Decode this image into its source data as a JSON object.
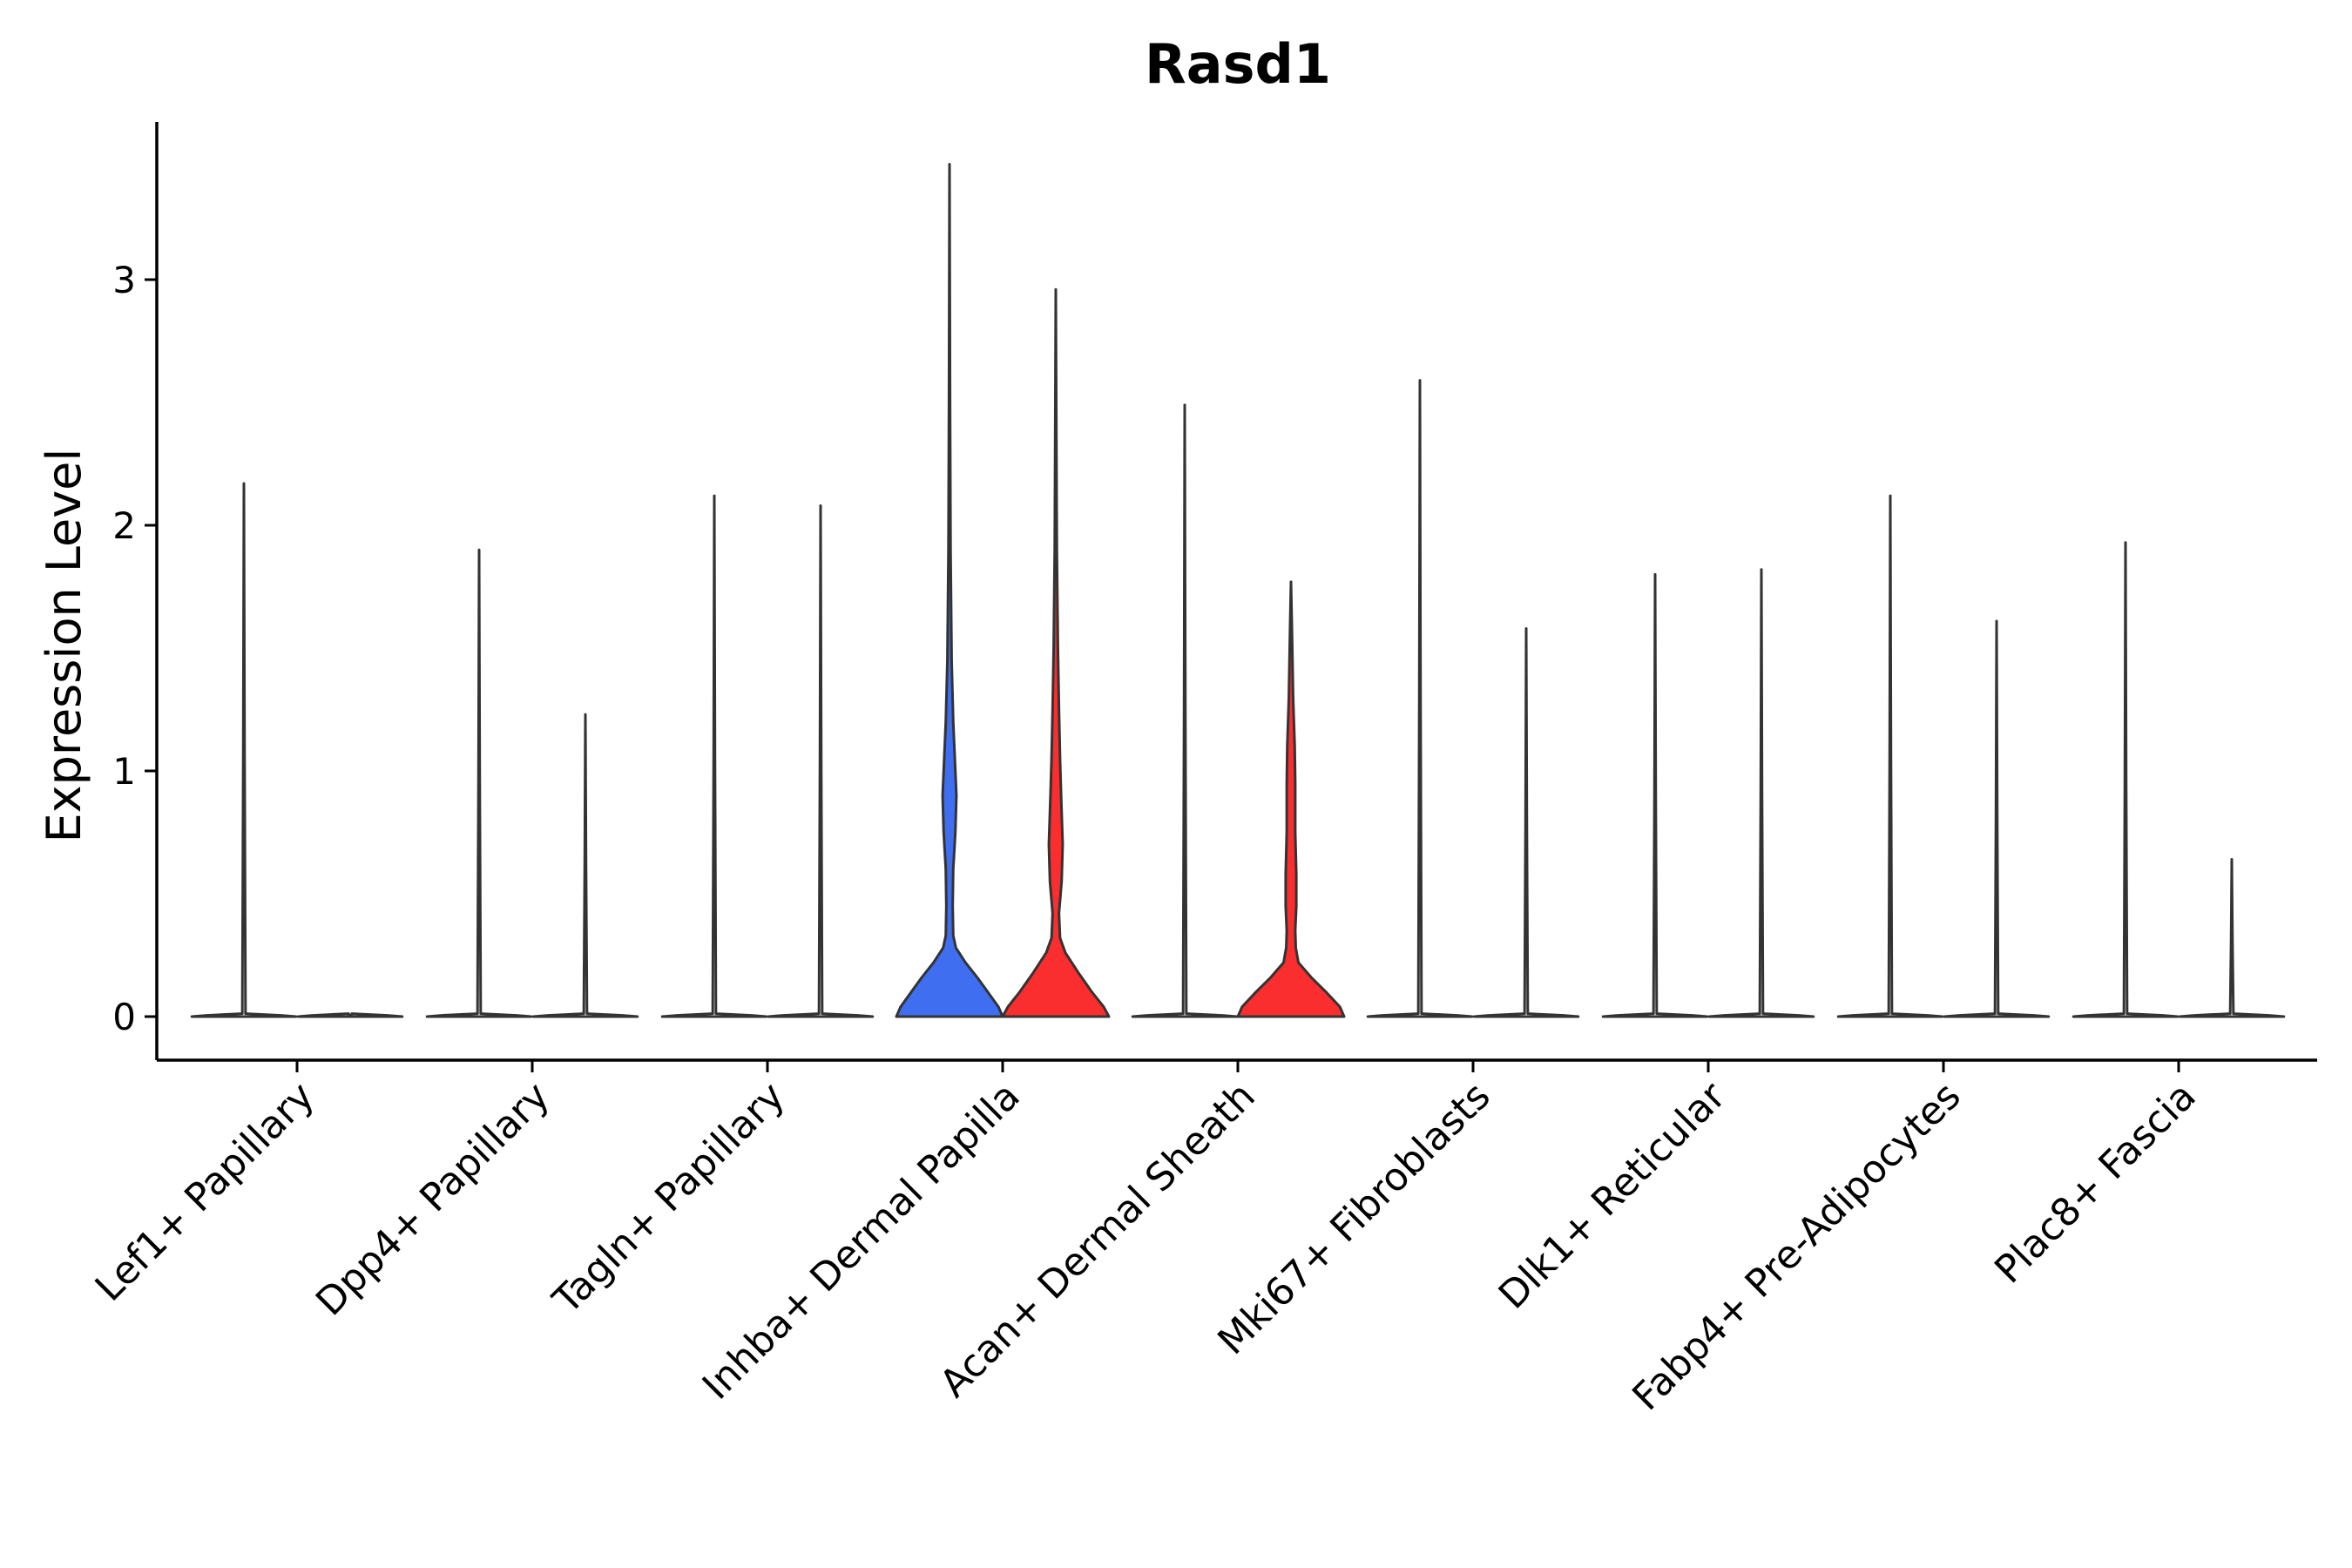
{
  "chart_data": {
    "type": "violin",
    "title": "Rasd1",
    "xlabel": "",
    "ylabel": "Expression Level",
    "ylim": [
      -0.17,
      3.65
    ],
    "yticks": [
      0,
      1,
      2,
      3
    ],
    "ytick_labels": [
      "0",
      "1",
      "2",
      "3"
    ],
    "grid": false,
    "legend": "none",
    "categories": [
      "Lef1+ Papillary",
      "Dpp4+ Papillary",
      "Tagln+ Papillary",
      "Inhba+ Dermal Papilla",
      "Acan+ Dermal Sheath",
      "Mki67+ Fibroblasts",
      "Dlk1+ Reticular",
      "Fabp4+ Pre-Adipocytes",
      "Plac8+ Fascia"
    ],
    "groups": [
      {
        "category": "Lef1+ Papillary",
        "side": "left",
        "max": 2.17,
        "fill": "#ffffff",
        "profile": "flat"
      },
      {
        "category": "Lef1+ Papillary",
        "side": "right",
        "max": 0.0,
        "fill": "#ffffff",
        "profile": "flat"
      },
      {
        "category": "Dpp4+ Papillary",
        "side": "left",
        "max": 1.9,
        "fill": "#ffffff",
        "profile": "flat"
      },
      {
        "category": "Dpp4+ Papillary",
        "side": "right",
        "max": 1.23,
        "fill": "#ffffff",
        "profile": "flat"
      },
      {
        "category": "Tagln+ Papillary",
        "side": "left",
        "max": 2.12,
        "fill": "#ffffff",
        "profile": "flat"
      },
      {
        "category": "Tagln+ Papillary",
        "side": "right",
        "max": 2.08,
        "fill": "#ffffff",
        "profile": "flat"
      },
      {
        "category": "Inhba+ Dermal Papilla",
        "side": "left",
        "max": 3.47,
        "fill": "#3f6ff0",
        "profile": "inhba"
      },
      {
        "category": "Inhba+ Dermal Papilla",
        "side": "right",
        "max": 2.96,
        "fill": "#fa2e2e",
        "profile": "inhba-red"
      },
      {
        "category": "Acan+ Dermal Sheath",
        "side": "left",
        "max": 2.49,
        "fill": "#ffffff",
        "profile": "flat"
      },
      {
        "category": "Acan+ Dermal Sheath",
        "side": "right",
        "max": 1.77,
        "fill": "#fa2e2e",
        "profile": "acan-red"
      },
      {
        "category": "Mki67+ Fibroblasts",
        "side": "left",
        "max": 2.59,
        "fill": "#ffffff",
        "profile": "flat"
      },
      {
        "category": "Mki67+ Fibroblasts",
        "side": "right",
        "max": 1.58,
        "fill": "#ffffff",
        "profile": "flat"
      },
      {
        "category": "Dlk1+ Reticular",
        "side": "left",
        "max": 1.8,
        "fill": "#ffffff",
        "profile": "flat"
      },
      {
        "category": "Dlk1+ Reticular",
        "side": "right",
        "max": 1.82,
        "fill": "#ffffff",
        "profile": "flat"
      },
      {
        "category": "Fabp4+ Pre-Adipocytes",
        "side": "left",
        "max": 2.12,
        "fill": "#ffffff",
        "profile": "flat"
      },
      {
        "category": "Fabp4+ Pre-Adipocytes",
        "side": "right",
        "max": 1.61,
        "fill": "#ffffff",
        "profile": "flat"
      },
      {
        "category": "Plac8+ Fascia",
        "side": "left",
        "max": 1.93,
        "fill": "#ffffff",
        "profile": "flat"
      },
      {
        "category": "Plac8+ Fascia",
        "side": "right",
        "max": 0.64,
        "fill": "#ffffff",
        "profile": "flat"
      }
    ]
  }
}
